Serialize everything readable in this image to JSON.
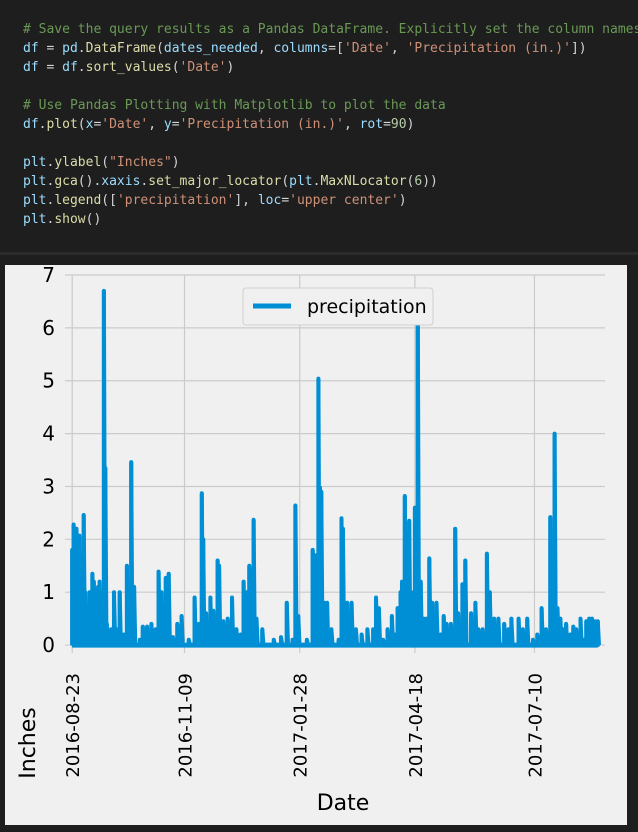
{
  "code_cell": {
    "lines": [
      [
        {
          "t": "# Save the query results as a Pandas DataFrame. Explicitly set the column names",
          "c": "comment"
        }
      ],
      [
        {
          "t": "df",
          "c": "var"
        },
        {
          "t": " = ",
          "c": "op"
        },
        {
          "t": "pd",
          "c": "var"
        },
        {
          "t": ".",
          "c": "op"
        },
        {
          "t": "DataFrame",
          "c": "fn"
        },
        {
          "t": "(",
          "c": "op"
        },
        {
          "t": "dates_needed",
          "c": "var"
        },
        {
          "t": ", ",
          "c": "op"
        },
        {
          "t": "columns",
          "c": "var"
        },
        {
          "t": "=[",
          "c": "op"
        },
        {
          "t": "'Date'",
          "c": "str"
        },
        {
          "t": ", ",
          "c": "op"
        },
        {
          "t": "'Precipitation (in.)'",
          "c": "str"
        },
        {
          "t": "])",
          "c": "op"
        }
      ],
      [
        {
          "t": "df",
          "c": "var"
        },
        {
          "t": " = ",
          "c": "op"
        },
        {
          "t": "df",
          "c": "var"
        },
        {
          "t": ".",
          "c": "op"
        },
        {
          "t": "sort_values",
          "c": "fn"
        },
        {
          "t": "(",
          "c": "op"
        },
        {
          "t": "'Date'",
          "c": "str"
        },
        {
          "t": ")",
          "c": "op"
        }
      ],
      [],
      [
        {
          "t": "# Use Pandas Plotting with Matplotlib to plot the data",
          "c": "comment"
        }
      ],
      [
        {
          "t": "df",
          "c": "var"
        },
        {
          "t": ".",
          "c": "op"
        },
        {
          "t": "plot",
          "c": "fn"
        },
        {
          "t": "(",
          "c": "op"
        },
        {
          "t": "x",
          "c": "var"
        },
        {
          "t": "=",
          "c": "op"
        },
        {
          "t": "'Date'",
          "c": "str"
        },
        {
          "t": ", ",
          "c": "op"
        },
        {
          "t": "y",
          "c": "var"
        },
        {
          "t": "=",
          "c": "op"
        },
        {
          "t": "'Precipitation (in.)'",
          "c": "str"
        },
        {
          "t": ", ",
          "c": "op"
        },
        {
          "t": "rot",
          "c": "var"
        },
        {
          "t": "=",
          "c": "op"
        },
        {
          "t": "90",
          "c": "num"
        },
        {
          "t": ")",
          "c": "op"
        }
      ],
      [],
      [
        {
          "t": "plt",
          "c": "var"
        },
        {
          "t": ".",
          "c": "op"
        },
        {
          "t": "ylabel",
          "c": "fn"
        },
        {
          "t": "(",
          "c": "op"
        },
        {
          "t": "\"Inches\"",
          "c": "str"
        },
        {
          "t": ")",
          "c": "op"
        }
      ],
      [
        {
          "t": "plt",
          "c": "var"
        },
        {
          "t": ".",
          "c": "op"
        },
        {
          "t": "gca",
          "c": "fn"
        },
        {
          "t": "().",
          "c": "op"
        },
        {
          "t": "xaxis",
          "c": "var"
        },
        {
          "t": ".",
          "c": "op"
        },
        {
          "t": "set_major_locator",
          "c": "fn"
        },
        {
          "t": "(",
          "c": "op"
        },
        {
          "t": "plt",
          "c": "var"
        },
        {
          "t": ".",
          "c": "op"
        },
        {
          "t": "MaxNLocator",
          "c": "fn"
        },
        {
          "t": "(",
          "c": "op"
        },
        {
          "t": "6",
          "c": "num"
        },
        {
          "t": "))",
          "c": "op"
        }
      ],
      [
        {
          "t": "plt",
          "c": "var"
        },
        {
          "t": ".",
          "c": "op"
        },
        {
          "t": "legend",
          "c": "fn"
        },
        {
          "t": "([",
          "c": "op"
        },
        {
          "t": "'precipitation'",
          "c": "str"
        },
        {
          "t": "], ",
          "c": "op"
        },
        {
          "t": "loc",
          "c": "var"
        },
        {
          "t": "=",
          "c": "op"
        },
        {
          "t": "'upper center'",
          "c": "str"
        },
        {
          "t": ")",
          "c": "op"
        }
      ],
      [
        {
          "t": "plt",
          "c": "var"
        },
        {
          "t": ".",
          "c": "op"
        },
        {
          "t": "show",
          "c": "fn"
        },
        {
          "t": "()",
          "c": "op"
        }
      ]
    ]
  },
  "colors": {
    "comment": "#6a9955",
    "var": "#9cdcfe",
    "fn": "#dcdcaa",
    "str": "#ce9178",
    "num": "#b5cea8",
    "op": "#d4d4d4",
    "series": "#008fd5",
    "grid": "#cbcbcb",
    "plot_bg": "#f0f0f0"
  },
  "chart_data": {
    "type": "line",
    "title": "",
    "xlabel": "Date",
    "ylabel": "Inches",
    "ylim": [
      0,
      7
    ],
    "yticks": [
      0,
      1,
      2,
      3,
      4,
      5,
      6,
      7
    ],
    "xlim": [
      "2016-08-23",
      "2017-08-23"
    ],
    "xticks": [
      "2016-08-23",
      "2016-11-09",
      "2017-01-28",
      "2017-04-18",
      "2017-07-10"
    ],
    "xtick_rotation": 90,
    "grid": true,
    "legend": {
      "entries": [
        "precipitation"
      ],
      "placement": "upper center"
    },
    "series": [
      {
        "name": "precipitation",
        "peaks": [
          {
            "x": "2016-08-23",
            "y": 1.8
          },
          {
            "x": "2016-08-24",
            "y": 2.28
          },
          {
            "x": "2016-08-26",
            "y": 2.2
          },
          {
            "x": "2016-08-27",
            "y": 1.3
          },
          {
            "x": "2016-08-28",
            "y": 2.07
          },
          {
            "x": "2016-08-29",
            "y": 1.7
          },
          {
            "x": "2016-08-31",
            "y": 2.46
          },
          {
            "x": "2016-09-01",
            "y": 1.0
          },
          {
            "x": "2016-09-03",
            "y": 0.6
          },
          {
            "x": "2016-09-04",
            "y": 1.0
          },
          {
            "x": "2016-09-06",
            "y": 1.35
          },
          {
            "x": "2016-09-07",
            "y": 1.2
          },
          {
            "x": "2016-09-10",
            "y": 1.1
          },
          {
            "x": "2016-09-11",
            "y": 1.2
          },
          {
            "x": "2016-09-13",
            "y": 1.0
          },
          {
            "x": "2016-09-14",
            "y": 6.7
          },
          {
            "x": "2016-09-15",
            "y": 3.35
          },
          {
            "x": "2016-09-16",
            "y": 0.4
          },
          {
            "x": "2016-09-19",
            "y": 0.3
          },
          {
            "x": "2016-09-21",
            "y": 1.0
          },
          {
            "x": "2016-09-23",
            "y": 0.3
          },
          {
            "x": "2016-09-25",
            "y": 1.0
          },
          {
            "x": "2016-09-28",
            "y": 0.2
          },
          {
            "x": "2016-09-30",
            "y": 1.5
          },
          {
            "x": "2016-10-03",
            "y": 3.46
          },
          {
            "x": "2016-10-05",
            "y": 1.1
          },
          {
            "x": "2016-10-09",
            "y": 0.1
          },
          {
            "x": "2016-10-11",
            "y": 0.35
          },
          {
            "x": "2016-10-14",
            "y": 0.35
          },
          {
            "x": "2016-10-17",
            "y": 0.4
          },
          {
            "x": "2016-10-20",
            "y": 0.3
          },
          {
            "x": "2016-10-22",
            "y": 1.39
          },
          {
            "x": "2016-10-24",
            "y": 1.0
          },
          {
            "x": "2016-10-27",
            "y": 1.27
          },
          {
            "x": "2016-10-29",
            "y": 1.35
          },
          {
            "x": "2016-11-01",
            "y": 0.15
          },
          {
            "x": "2016-11-04",
            "y": 0.4
          },
          {
            "x": "2016-11-07",
            "y": 0.55
          },
          {
            "x": "2016-11-12",
            "y": 0.1
          },
          {
            "x": "2016-11-16",
            "y": 0.9
          },
          {
            "x": "2016-11-19",
            "y": 0.4
          },
          {
            "x": "2016-11-21",
            "y": 2.87
          },
          {
            "x": "2016-11-22",
            "y": 2.0
          },
          {
            "x": "2016-11-24",
            "y": 0.6
          },
          {
            "x": "2016-11-27",
            "y": 0.9
          },
          {
            "x": "2016-11-29",
            "y": 0.65
          },
          {
            "x": "2016-12-02",
            "y": 1.6
          },
          {
            "x": "2016-12-03",
            "y": 1.5
          },
          {
            "x": "2016-12-06",
            "y": 0.45
          },
          {
            "x": "2016-12-09",
            "y": 0.5
          },
          {
            "x": "2016-12-12",
            "y": 0.9
          },
          {
            "x": "2016-12-15",
            "y": 0.3
          },
          {
            "x": "2016-12-18",
            "y": 0.2
          },
          {
            "x": "2016-12-20",
            "y": 1.2
          },
          {
            "x": "2016-12-22",
            "y": 1.0
          },
          {
            "x": "2016-12-24",
            "y": 1.5
          },
          {
            "x": "2016-12-25",
            "y": 1.4
          },
          {
            "x": "2016-12-27",
            "y": 2.37
          },
          {
            "x": "2016-12-29",
            "y": 0.5
          },
          {
            "x": "2017-01-02",
            "y": 0.3
          },
          {
            "x": "2017-01-10",
            "y": 0.1
          },
          {
            "x": "2017-01-15",
            "y": 0.15
          },
          {
            "x": "2017-01-19",
            "y": 0.8
          },
          {
            "x": "2017-01-23",
            "y": 0.1
          },
          {
            "x": "2017-01-25",
            "y": 2.64
          },
          {
            "x": "2017-01-27",
            "y": 0.55
          },
          {
            "x": "2017-02-02",
            "y": 0.1
          },
          {
            "x": "2017-02-06",
            "y": 1.8
          },
          {
            "x": "2017-02-08",
            "y": 1.7
          },
          {
            "x": "2017-02-10",
            "y": 5.04
          },
          {
            "x": "2017-02-11",
            "y": 2.98
          },
          {
            "x": "2017-02-12",
            "y": 2.9
          },
          {
            "x": "2017-02-14",
            "y": 0.8
          },
          {
            "x": "2017-02-16",
            "y": 0.8
          },
          {
            "x": "2017-02-19",
            "y": 0.3
          },
          {
            "x": "2017-02-24",
            "y": 0.1
          },
          {
            "x": "2017-02-26",
            "y": 2.4
          },
          {
            "x": "2017-02-27",
            "y": 2.2
          },
          {
            "x": "2017-03-02",
            "y": 0.8
          },
          {
            "x": "2017-03-05",
            "y": 0.8
          },
          {
            "x": "2017-03-08",
            "y": 0.3
          },
          {
            "x": "2017-03-12",
            "y": 0.2
          },
          {
            "x": "2017-03-16",
            "y": 0.3
          },
          {
            "x": "2017-03-20",
            "y": 0.3
          },
          {
            "x": "2017-03-22",
            "y": 0.9
          },
          {
            "x": "2017-03-24",
            "y": 0.7
          },
          {
            "x": "2017-03-27",
            "y": 0.1
          },
          {
            "x": "2017-03-30",
            "y": 0.3
          },
          {
            "x": "2017-04-02",
            "y": 0.55
          },
          {
            "x": "2017-04-04",
            "y": 0.2
          },
          {
            "x": "2017-04-06",
            "y": 0.7
          },
          {
            "x": "2017-04-08",
            "y": 1.0
          },
          {
            "x": "2017-04-09",
            "y": 1.2
          },
          {
            "x": "2017-04-11",
            "y": 2.82
          },
          {
            "x": "2017-04-12",
            "y": 1.6
          },
          {
            "x": "2017-04-13",
            "y": 2.1
          },
          {
            "x": "2017-04-14",
            "y": 2.35
          },
          {
            "x": "2017-04-16",
            "y": 0.9
          },
          {
            "x": "2017-04-17",
            "y": 1.0
          },
          {
            "x": "2017-04-18",
            "y": 2.6
          },
          {
            "x": "2017-04-20",
            "y": 6.25
          },
          {
            "x": "2017-04-22",
            "y": 1.2
          },
          {
            "x": "2017-04-24",
            "y": 0.5
          },
          {
            "x": "2017-04-26",
            "y": 0.5
          },
          {
            "x": "2017-04-28",
            "y": 1.64
          },
          {
            "x": "2017-04-30",
            "y": 0.8
          },
          {
            "x": "2017-05-03",
            "y": 0.8
          },
          {
            "x": "2017-05-06",
            "y": 0.2
          },
          {
            "x": "2017-05-08",
            "y": 0.55
          },
          {
            "x": "2017-05-10",
            "y": 0.4
          },
          {
            "x": "2017-05-13",
            "y": 0.4
          },
          {
            "x": "2017-05-16",
            "y": 2.2
          },
          {
            "x": "2017-05-18",
            "y": 0.6
          },
          {
            "x": "2017-05-21",
            "y": 1.15
          },
          {
            "x": "2017-05-23",
            "y": 1.6
          },
          {
            "x": "2017-05-27",
            "y": 0.6
          },
          {
            "x": "2017-05-30",
            "y": 0.8
          },
          {
            "x": "2017-06-01",
            "y": 0.3
          },
          {
            "x": "2017-06-04",
            "y": 0.3
          },
          {
            "x": "2017-06-07",
            "y": 1.73
          },
          {
            "x": "2017-06-09",
            "y": 1.0
          },
          {
            "x": "2017-06-12",
            "y": 0.5
          },
          {
            "x": "2017-06-15",
            "y": 0.5
          },
          {
            "x": "2017-06-19",
            "y": 0.4
          },
          {
            "x": "2017-06-22",
            "y": 0.3
          },
          {
            "x": "2017-06-24",
            "y": 0.5
          },
          {
            "x": "2017-06-29",
            "y": 0.5
          },
          {
            "x": "2017-07-02",
            "y": 0.3
          },
          {
            "x": "2017-07-05",
            "y": 0.5
          },
          {
            "x": "2017-07-09",
            "y": 0.1
          },
          {
            "x": "2017-07-12",
            "y": 0.2
          },
          {
            "x": "2017-07-15",
            "y": 0.7
          },
          {
            "x": "2017-07-18",
            "y": 0.3
          },
          {
            "x": "2017-07-21",
            "y": 2.42
          },
          {
            "x": "2017-07-23",
            "y": 1.0
          },
          {
            "x": "2017-07-24",
            "y": 4.0
          },
          {
            "x": "2017-07-26",
            "y": 0.7
          },
          {
            "x": "2017-07-28",
            "y": 0.5
          },
          {
            "x": "2017-07-30",
            "y": 0.3
          },
          {
            "x": "2017-08-01",
            "y": 0.4
          },
          {
            "x": "2017-08-04",
            "y": 0.2
          },
          {
            "x": "2017-08-06",
            "y": 0.35
          },
          {
            "x": "2017-08-08",
            "y": 0.3
          },
          {
            "x": "2017-08-11",
            "y": 0.5
          },
          {
            "x": "2017-08-13",
            "y": 0.1
          },
          {
            "x": "2017-08-15",
            "y": 0.45
          },
          {
            "x": "2017-08-17",
            "y": 0.5
          },
          {
            "x": "2017-08-19",
            "y": 0.5
          },
          {
            "x": "2017-08-21",
            "y": 0.45
          },
          {
            "x": "2017-08-23",
            "y": 0.45
          }
        ]
      }
    ]
  }
}
